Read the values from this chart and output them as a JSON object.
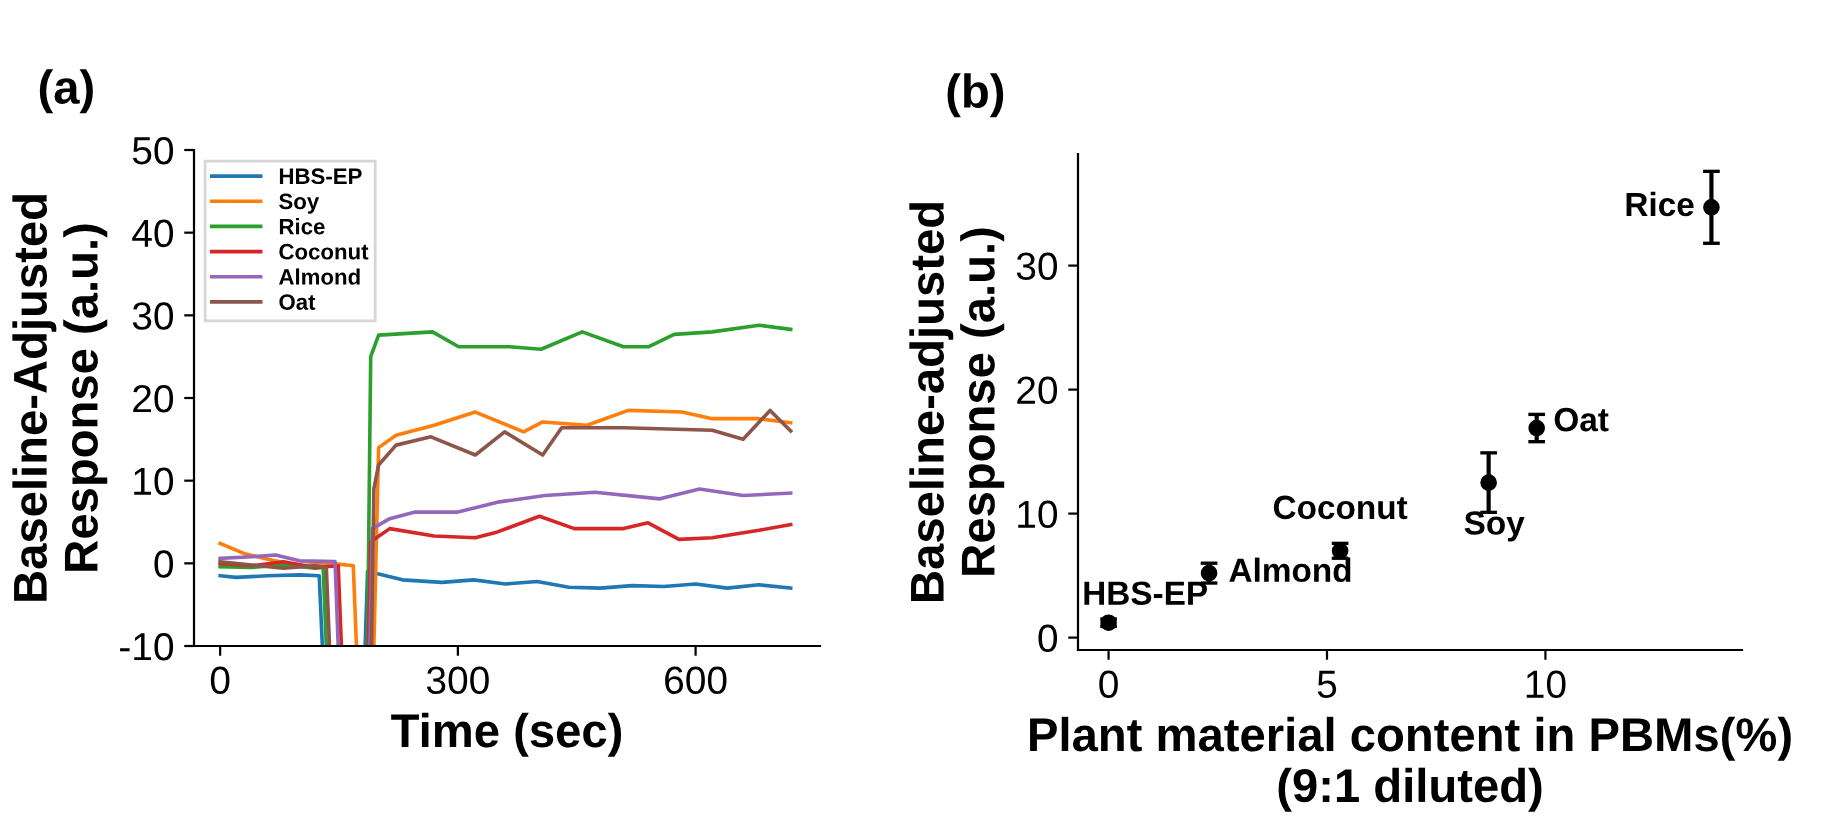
{
  "chart_data": [
    {
      "type": "line",
      "title": "(a)",
      "xlabel": "Time (sec)",
      "ylabel": "Baseline-Adjusted\nResponse (a.u.)",
      "xlim": [
        -33,
        757
      ],
      "ylim": [
        -10,
        50
      ],
      "xticks": [
        0,
        300,
        600
      ],
      "yticks": [
        -10,
        0,
        10,
        20,
        30,
        40,
        50
      ],
      "grid": false,
      "legend": "top left",
      "marker": "none",
      "line_style": "solid",
      "series": [
        {
          "name": "HBS-EP",
          "color": "#1f77b4",
          "x": [
            0,
            20,
            60,
            100,
            125,
            129,
            156,
            183,
            186,
            200,
            230,
            280,
            320,
            360,
            400,
            440,
            480,
            520,
            560,
            600,
            640,
            680,
            720
          ],
          "values": [
            -1.5,
            -1.7,
            -1.5,
            -1.4,
            -1.5,
            -10,
            null,
            -10,
            -1.0,
            -1.3,
            -2.0,
            -2.3,
            -2.0,
            -2.5,
            -2.2,
            -2.9,
            -3.0,
            -2.7,
            -2.8,
            -2.5,
            -3.0,
            -2.6,
            -3.0
          ]
        },
        {
          "name": "Soy",
          "color": "#ff7f0e",
          "x": [
            0,
            30,
            60,
            100,
            140,
            168,
            172,
            183,
            194,
            200,
            222,
            270,
            322,
            383,
            407,
            463,
            515,
            583,
            621,
            680,
            720
          ],
          "values": [
            2.4,
            1.2,
            0.5,
            -0.3,
            0.0,
            -0.3,
            -10,
            null,
            -10,
            14.0,
            15.5,
            16.7,
            18.3,
            15.9,
            17.1,
            16.7,
            18.5,
            18.3,
            17.5,
            17.5,
            17.0
          ]
        },
        {
          "name": "Rice",
          "color": "#2ca02c",
          "x": [
            0,
            40,
            80,
            120,
            130,
            134,
            160,
            186,
            190,
            200,
            268,
            301,
            365,
            405,
            457,
            509,
            541,
            573,
            621,
            680,
            720
          ],
          "values": [
            -0.4,
            -0.5,
            -0.2,
            -0.6,
            -0.5,
            -10,
            null,
            -10,
            25.0,
            27.6,
            28.0,
            26.2,
            26.2,
            25.9,
            28.0,
            26.2,
            26.2,
            27.7,
            28.0,
            28.8,
            28.3
          ]
        },
        {
          "name": "Coconut",
          "color": "#d62728",
          "x": [
            0,
            40,
            80,
            120,
            149,
            153,
            170,
            187,
            190,
            214,
            270,
            322,
            350,
            403,
            447,
            509,
            540,
            579,
            621,
            680,
            720
          ],
          "values": [
            0.0,
            -0.3,
            0.2,
            -0.5,
            -0.3,
            -10,
            null,
            -10,
            2.6,
            4.2,
            3.3,
            3.1,
            3.8,
            5.7,
            4.2,
            4.2,
            4.9,
            2.9,
            3.1,
            4.0,
            4.7
          ]
        },
        {
          "name": "Almond",
          "color": "#9467bd",
          "x": [
            0,
            40,
            70,
            100,
            145,
            149,
            170,
            189,
            192,
            214,
            246,
            300,
            350,
            410,
            473,
            555,
            605,
            660,
            720
          ],
          "values": [
            0.6,
            0.8,
            1.0,
            0.3,
            0.2,
            -10,
            null,
            -10,
            4.2,
            5.4,
            6.2,
            6.2,
            7.4,
            8.2,
            8.6,
            7.8,
            9.0,
            8.2,
            8.5
          ]
        },
        {
          "name": "Oat",
          "color": "#8c564b",
          "x": [
            0,
            40,
            80,
            120,
            134,
            138,
            165,
            191,
            194,
            200,
            222,
            266,
            322,
            359,
            407,
            431,
            509,
            621,
            660,
            694,
            720
          ],
          "values": [
            0.2,
            -0.2,
            -0.6,
            -0.3,
            -0.5,
            -10,
            null,
            -10,
            9.0,
            11.9,
            14.3,
            15.3,
            13.1,
            15.9,
            13.1,
            16.4,
            16.4,
            16.1,
            15.0,
            18.5,
            16.0
          ]
        }
      ]
    },
    {
      "type": "scatter",
      "title": "(b)",
      "xlabel": "Plant material content in PBMs(%)\n(9:1 diluted)",
      "ylabel": "Baseline-adjusted\nResponse (a.u.)",
      "xlim": [
        -0.7,
        14.5
      ],
      "ylim": [
        -1,
        39
      ],
      "xticks": [
        0,
        5,
        10
      ],
      "yticks": [
        0,
        10,
        20,
        30
      ],
      "grid": false,
      "legend": false,
      "marker": "circle",
      "series": [
        {
          "color": "#000000",
          "x": [
            0,
            2.3,
            5.3,
            8.7,
            9.8,
            13.8
          ],
          "values": [
            1.2,
            5.2,
            7.0,
            12.5,
            16.9,
            34.7
          ],
          "errors": [
            0.3,
            0.8,
            0.6,
            2.4,
            1.1,
            2.9
          ]
        }
      ],
      "annotations": [
        {
          "text": "HBS-EP",
          "x": 0,
          "y": 1.2
        },
        {
          "text": "Almond",
          "x": 2.3,
          "y": 5.2
        },
        {
          "text": "Coconut",
          "x": 5.3,
          "y": 7.0
        },
        {
          "text": "Soy",
          "x": 8.7,
          "y": 12.5
        },
        {
          "text": "Oat",
          "x": 9.8,
          "y": 16.9
        },
        {
          "text": "Rice",
          "x": 13.8,
          "y": 34.7
        }
      ]
    }
  ]
}
